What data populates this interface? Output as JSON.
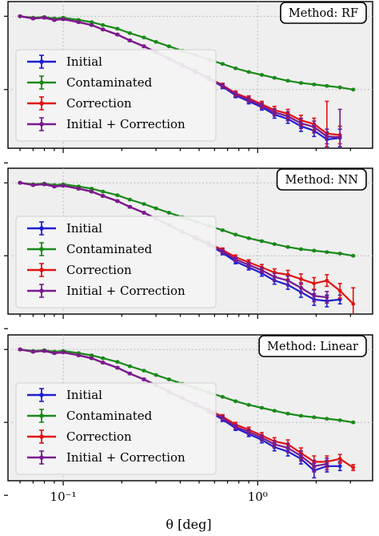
{
  "colors": {
    "initial": "#1f1fd1",
    "contaminated": "#1a8a1a",
    "correction": "#e01414",
    "initial_plus_correction": "#7a1a90",
    "panel_bg": "#efefef"
  },
  "x_axis": {
    "label": "θ [deg]",
    "ticks": [
      {
        "value": 0.1,
        "label": "10⁻¹"
      },
      {
        "value": 1.0,
        "label": "10⁰"
      }
    ]
  },
  "chart_data": [
    {
      "type": "line",
      "method_label": "Method: RF",
      "xscale": "log",
      "xlim": [
        0.052,
        3.9
      ],
      "ylim": [
        0.1,
        1.1
      ],
      "grid": true,
      "legend_position": "lower-left",
      "x": [
        0.06,
        0.07,
        0.08,
        0.09,
        0.1,
        0.12,
        0.14,
        0.16,
        0.19,
        0.22,
        0.26,
        0.3,
        0.35,
        0.41,
        0.48,
        0.56,
        0.66,
        0.77,
        0.9,
        1.05,
        1.22,
        1.43,
        1.67,
        1.95,
        2.27,
        2.65,
        3.1
      ],
      "series": [
        {
          "name": "Initial",
          "color_key": "initial",
          "values": [
            1.0,
            0.985,
            0.99,
            0.975,
            0.98,
            0.96,
            0.94,
            0.91,
            0.875,
            0.835,
            0.795,
            0.755,
            0.71,
            0.665,
            0.62,
            0.575,
            0.52,
            0.46,
            0.42,
            0.38,
            0.33,
            0.3,
            0.25,
            0.22,
            0.16,
            0.17,
            null
          ],
          "err": [
            0.005,
            0.005,
            0.005,
            0.005,
            0.005,
            0.005,
            0.005,
            0.005,
            0.005,
            0.006,
            0.006,
            0.007,
            0.008,
            0.009,
            0.01,
            0.012,
            0.013,
            0.015,
            0.017,
            0.02,
            0.025,
            0.03,
            0.035,
            0.04,
            0.05,
            0.06,
            0
          ]
        },
        {
          "name": "Contaminated",
          "color_key": "contaminated",
          "values": [
            1.0,
            0.99,
            0.995,
            0.985,
            0.99,
            0.975,
            0.96,
            0.94,
            0.915,
            0.885,
            0.855,
            0.825,
            0.795,
            0.765,
            0.735,
            0.705,
            0.675,
            0.645,
            0.62,
            0.6,
            0.58,
            0.56,
            0.545,
            0.535,
            0.525,
            0.515,
            0.5
          ],
          "err": [
            0.004,
            0.004,
            0.004,
            0.004,
            0.004,
            0.004,
            0.004,
            0.004,
            0.004,
            0.004,
            0.004,
            0.004,
            0.004,
            0.004,
            0.004,
            0.004,
            0.004,
            0.004,
            0.004,
            0.004,
            0.004,
            0.004,
            0.004,
            0.004,
            0.004,
            0.004,
            0.004
          ]
        },
        {
          "name": "Correction",
          "color_key": "correction",
          "values": [
            1.0,
            0.985,
            0.99,
            0.975,
            0.98,
            0.96,
            0.94,
            0.91,
            0.875,
            0.835,
            0.795,
            0.755,
            0.71,
            0.665,
            0.625,
            0.58,
            0.53,
            0.475,
            0.44,
            0.4,
            0.36,
            0.335,
            0.29,
            0.265,
            0.2,
            0.19,
            null
          ],
          "err": [
            0.005,
            0.005,
            0.005,
            0.005,
            0.005,
            0.005,
            0.005,
            0.005,
            0.005,
            0.006,
            0.006,
            0.007,
            0.008,
            0.009,
            0.01,
            0.012,
            0.013,
            0.015,
            0.017,
            0.02,
            0.025,
            0.03,
            0.035,
            0.04,
            0.22,
            0.06,
            0
          ]
        },
        {
          "name": "Initial + Correction",
          "color_key": "initial_plus_correction",
          "values": [
            1.0,
            0.985,
            0.99,
            0.975,
            0.98,
            0.96,
            0.94,
            0.91,
            0.875,
            0.835,
            0.795,
            0.755,
            0.71,
            0.665,
            0.622,
            0.577,
            0.525,
            0.467,
            0.43,
            0.39,
            0.345,
            0.318,
            0.27,
            0.245,
            0.18,
            0.175,
            null
          ],
          "err": [
            0.005,
            0.005,
            0.005,
            0.005,
            0.005,
            0.005,
            0.005,
            0.005,
            0.005,
            0.006,
            0.006,
            0.007,
            0.008,
            0.009,
            0.01,
            0.012,
            0.013,
            0.015,
            0.017,
            0.02,
            0.025,
            0.03,
            0.035,
            0.04,
            0.05,
            0.19,
            0
          ]
        }
      ]
    },
    {
      "type": "line",
      "method_label": "Method: NN",
      "xscale": "log",
      "xlim": [
        0.052,
        3.9
      ],
      "ylim": [
        0.1,
        1.1
      ],
      "grid": true,
      "legend_position": "lower-left",
      "x": [
        0.06,
        0.07,
        0.08,
        0.09,
        0.1,
        0.12,
        0.14,
        0.16,
        0.19,
        0.22,
        0.26,
        0.3,
        0.35,
        0.41,
        0.48,
        0.56,
        0.66,
        0.77,
        0.9,
        1.05,
        1.22,
        1.43,
        1.67,
        1.95,
        2.27,
        2.65,
        3.1
      ],
      "series": [
        {
          "name": "Initial",
          "color_key": "initial",
          "values": [
            1.0,
            0.985,
            0.99,
            0.975,
            0.98,
            0.96,
            0.94,
            0.91,
            0.875,
            0.835,
            0.795,
            0.755,
            0.71,
            0.665,
            0.62,
            0.575,
            0.52,
            0.46,
            0.42,
            0.38,
            0.33,
            0.3,
            0.25,
            0.2,
            0.19,
            0.2,
            null
          ],
          "err": [
            0.005,
            0.005,
            0.005,
            0.005,
            0.005,
            0.005,
            0.005,
            0.005,
            0.005,
            0.006,
            0.006,
            0.007,
            0.008,
            0.009,
            0.01,
            0.012,
            0.013,
            0.015,
            0.017,
            0.02,
            0.025,
            0.03,
            0.035,
            0.04,
            0.04,
            0.03,
            0
          ]
        },
        {
          "name": "Contaminated",
          "color_key": "contaminated",
          "values": [
            1.0,
            0.99,
            0.995,
            0.985,
            0.99,
            0.975,
            0.96,
            0.94,
            0.915,
            0.885,
            0.855,
            0.825,
            0.795,
            0.765,
            0.735,
            0.705,
            0.675,
            0.645,
            0.62,
            0.6,
            0.58,
            0.56,
            0.545,
            0.535,
            0.525,
            0.515,
            0.5
          ],
          "err": [
            0.004,
            0.004,
            0.004,
            0.004,
            0.004,
            0.004,
            0.004,
            0.004,
            0.004,
            0.004,
            0.004,
            0.004,
            0.004,
            0.004,
            0.004,
            0.004,
            0.004,
            0.004,
            0.004,
            0.004,
            0.004,
            0.004,
            0.004,
            0.004,
            0.004,
            0.004,
            0.004
          ]
        },
        {
          "name": "Correction",
          "color_key": "correction",
          "values": [
            1.0,
            0.985,
            0.99,
            0.975,
            0.98,
            0.96,
            0.94,
            0.91,
            0.875,
            0.835,
            0.795,
            0.755,
            0.71,
            0.665,
            0.625,
            0.585,
            0.54,
            0.49,
            0.455,
            0.42,
            0.385,
            0.37,
            0.34,
            0.31,
            0.33,
            0.26,
            0.17
          ],
          "err": [
            0.005,
            0.005,
            0.005,
            0.005,
            0.005,
            0.005,
            0.005,
            0.005,
            0.005,
            0.006,
            0.006,
            0.007,
            0.008,
            0.009,
            0.01,
            0.012,
            0.013,
            0.015,
            0.017,
            0.02,
            0.025,
            0.03,
            0.035,
            0.04,
            0.04,
            0.05,
            0.11
          ]
        },
        {
          "name": "Initial + Correction",
          "color_key": "initial_plus_correction",
          "values": [
            1.0,
            0.985,
            0.99,
            0.975,
            0.98,
            0.96,
            0.94,
            0.91,
            0.875,
            0.835,
            0.795,
            0.755,
            0.71,
            0.665,
            0.622,
            0.58,
            0.53,
            0.475,
            0.437,
            0.4,
            0.355,
            0.33,
            0.28,
            0.225,
            0.215,
            null,
            null
          ],
          "err": [
            0.005,
            0.005,
            0.005,
            0.005,
            0.005,
            0.005,
            0.005,
            0.005,
            0.005,
            0.006,
            0.006,
            0.007,
            0.008,
            0.009,
            0.01,
            0.012,
            0.013,
            0.015,
            0.017,
            0.02,
            0.025,
            0.03,
            0.035,
            0.04,
            0.04,
            0,
            0
          ]
        }
      ]
    },
    {
      "type": "line",
      "method_label": "Method: Linear",
      "xscale": "log",
      "xlim": [
        0.052,
        3.9
      ],
      "ylim": [
        0.1,
        1.1
      ],
      "grid": true,
      "legend_position": "lower-left",
      "x": [
        0.06,
        0.07,
        0.08,
        0.09,
        0.1,
        0.12,
        0.14,
        0.16,
        0.19,
        0.22,
        0.26,
        0.3,
        0.35,
        0.41,
        0.48,
        0.56,
        0.66,
        0.77,
        0.9,
        1.05,
        1.22,
        1.43,
        1.67,
        1.95,
        2.27,
        2.65,
        3.1
      ],
      "series": [
        {
          "name": "Initial",
          "color_key": "initial",
          "values": [
            1.0,
            0.985,
            0.99,
            0.975,
            0.98,
            0.96,
            0.94,
            0.91,
            0.875,
            0.835,
            0.795,
            0.755,
            0.71,
            0.665,
            0.62,
            0.575,
            0.52,
            0.46,
            0.42,
            0.38,
            0.33,
            0.3,
            0.25,
            0.17,
            0.2,
            0.2,
            null
          ],
          "err": [
            0.005,
            0.005,
            0.005,
            0.005,
            0.005,
            0.005,
            0.005,
            0.005,
            0.005,
            0.006,
            0.006,
            0.007,
            0.008,
            0.009,
            0.01,
            0.012,
            0.013,
            0.015,
            0.017,
            0.02,
            0.025,
            0.03,
            0.035,
            0.05,
            0.04,
            0.03,
            0
          ]
        },
        {
          "name": "Contaminated",
          "color_key": "contaminated",
          "values": [
            1.0,
            0.99,
            0.995,
            0.985,
            0.99,
            0.975,
            0.96,
            0.94,
            0.915,
            0.885,
            0.855,
            0.825,
            0.795,
            0.765,
            0.735,
            0.705,
            0.675,
            0.645,
            0.62,
            0.6,
            0.58,
            0.56,
            0.545,
            0.535,
            0.525,
            0.515,
            0.5
          ],
          "err": [
            0.004,
            0.004,
            0.004,
            0.004,
            0.004,
            0.004,
            0.004,
            0.004,
            0.004,
            0.004,
            0.004,
            0.004,
            0.004,
            0.004,
            0.004,
            0.004,
            0.004,
            0.004,
            0.004,
            0.004,
            0.004,
            0.004,
            0.004,
            0.004,
            0.004,
            0.004,
            0.004
          ]
        },
        {
          "name": "Correction",
          "color_key": "correction",
          "values": [
            1.0,
            0.985,
            0.99,
            0.975,
            0.98,
            0.96,
            0.94,
            0.91,
            0.875,
            0.835,
            0.795,
            0.755,
            0.71,
            0.665,
            0.625,
            0.585,
            0.54,
            0.485,
            0.45,
            0.41,
            0.37,
            0.35,
            0.29,
            0.23,
            0.23,
            0.25,
            0.19
          ],
          "err": [
            0.005,
            0.005,
            0.005,
            0.005,
            0.005,
            0.005,
            0.005,
            0.005,
            0.005,
            0.006,
            0.006,
            0.007,
            0.008,
            0.009,
            0.01,
            0.012,
            0.013,
            0.015,
            0.017,
            0.02,
            0.025,
            0.03,
            0.035,
            0.04,
            0.04,
            0.03,
            0.02
          ]
        },
        {
          "name": "Initial + Correction",
          "color_key": "initial_plus_correction",
          "values": [
            1.0,
            0.985,
            0.99,
            0.975,
            0.98,
            0.96,
            0.94,
            0.91,
            0.875,
            0.835,
            0.795,
            0.755,
            0.71,
            0.665,
            0.622,
            0.58,
            0.53,
            0.47,
            0.435,
            0.395,
            0.35,
            0.325,
            0.27,
            0.2,
            0.215,
            null,
            null
          ],
          "err": [
            0.005,
            0.005,
            0.005,
            0.005,
            0.005,
            0.005,
            0.005,
            0.005,
            0.005,
            0.006,
            0.006,
            0.007,
            0.008,
            0.009,
            0.01,
            0.012,
            0.013,
            0.015,
            0.017,
            0.02,
            0.025,
            0.03,
            0.035,
            0.04,
            0.04,
            0,
            0
          ]
        }
      ]
    }
  ]
}
